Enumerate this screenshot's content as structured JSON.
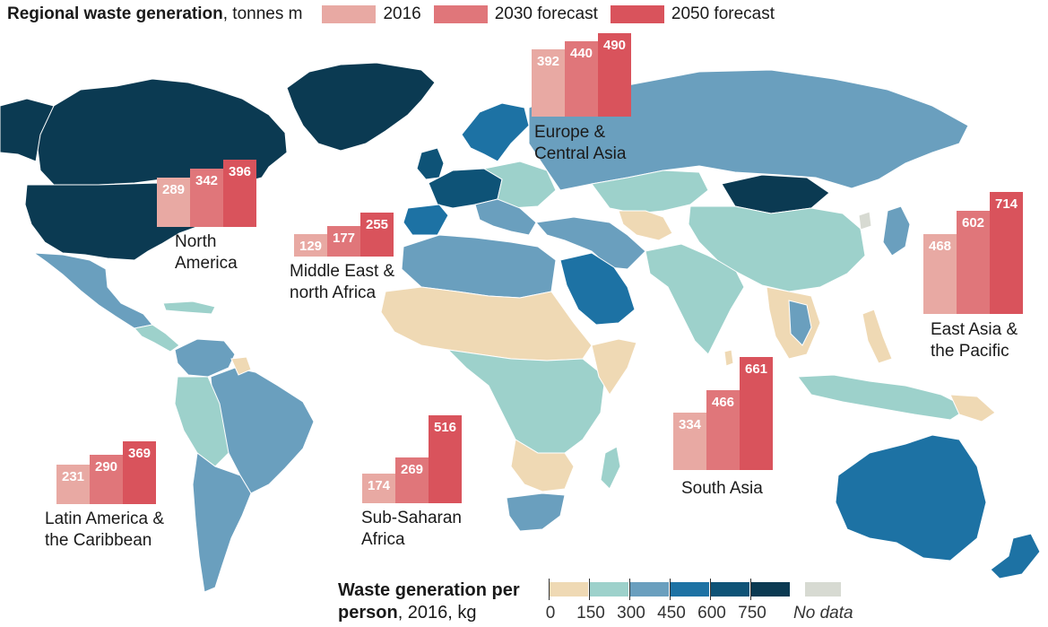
{
  "header": {
    "title_bold": "Regional waste generation",
    "title_rest": ", tonnes m",
    "legend": [
      {
        "label": "2016",
        "color": "#e8a9a3"
      },
      {
        "label": "2030 forecast",
        "color": "#e0767a"
      },
      {
        "label": "2050 forecast",
        "color": "#d9535c"
      }
    ]
  },
  "regions": [
    {
      "name_lines": [
        "Europe &",
        "Central Asia"
      ],
      "values": [
        392,
        440,
        490
      ],
      "labels": [
        "392",
        "440",
        "490"
      ]
    },
    {
      "name_lines": [
        "North",
        "America"
      ],
      "values": [
        289,
        342,
        396
      ],
      "labels": [
        "289",
        "342",
        "396"
      ]
    },
    {
      "name_lines": [
        "Middle East &",
        "north Africa"
      ],
      "values": [
        129,
        177,
        255
      ],
      "labels": [
        "129",
        "177",
        "255"
      ]
    },
    {
      "name_lines": [
        "East Asia &",
        "the Pacific"
      ],
      "values": [
        468,
        602,
        714
      ],
      "labels": [
        "468",
        "602",
        "714"
      ]
    },
    {
      "name_lines": [
        "South Asia"
      ],
      "values": [
        334,
        466,
        661
      ],
      "labels": [
        "334",
        "466",
        "661"
      ]
    },
    {
      "name_lines": [
        "Sub-Saharan",
        "Africa"
      ],
      "values": [
        174,
        269,
        516
      ],
      "labels": [
        "174",
        "269",
        "516"
      ]
    },
    {
      "name_lines": [
        "Latin America &",
        "the Caribbean"
      ],
      "values": [
        231,
        290,
        369
      ],
      "labels": [
        "231",
        "290",
        "369"
      ]
    }
  ],
  "scale": {
    "title_bold": "Waste generation per",
    "title_bold2": "person",
    "title_rest": ", 2016, kg",
    "bins": [
      {
        "color": "#efd9b4"
      },
      {
        "color": "#9dd1cb"
      },
      {
        "color": "#6a9fbe"
      },
      {
        "color": "#1d72a4"
      },
      {
        "color": "#0e5377"
      },
      {
        "color": "#0b3a52"
      }
    ],
    "tick_labels": [
      "0",
      "150",
      "300",
      "450",
      "600",
      "750"
    ],
    "no_data_label": "No data",
    "no_data_color": "#d7dad2"
  },
  "colors": {
    "ocean": "#ffffff",
    "border": "#ffffff"
  }
}
